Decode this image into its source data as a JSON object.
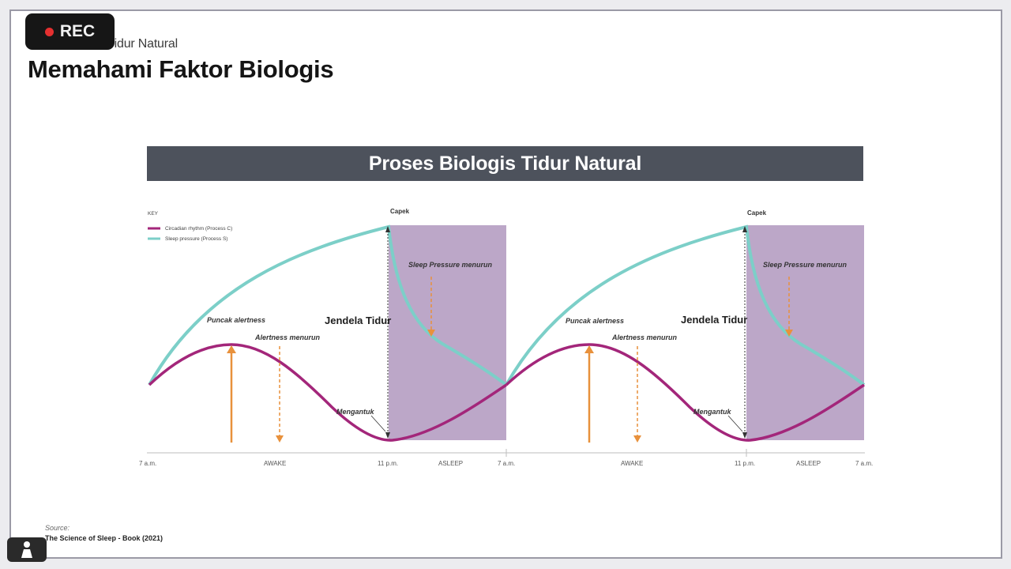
{
  "recording": {
    "label": "REC"
  },
  "slide": {
    "subtitle": "a Tidur Natural",
    "title": "Memahami Faktor Biologis",
    "banner": "Proses Biologis Tidur Natural",
    "source_label": "Source:",
    "source_text": "The Science of Sleep - Book (2021)"
  },
  "diagram": {
    "key_title": "KEY",
    "key_items": [
      {
        "label": "Circadian rhythm (Process C)",
        "color": "#a3267a"
      },
      {
        "label": "Sleep pressure (Process S)",
        "color": "#7ccfc8"
      }
    ],
    "annotations": {
      "tired": "Capek",
      "pressure_down": "Sleep Pressure menurun",
      "sleep_window": "Jendela Tidur",
      "alert_peak": "Puncak alertness",
      "alert_down": "Alertness menurun",
      "sleepy": "Mengantuk"
    },
    "ticks": {
      "start": "7 a.m.",
      "awake": "AWAKE",
      "night": "11 p.m.",
      "asleep": "ASLEEP",
      "end": "7 a.m."
    },
    "colors": {
      "circadian": "#a3267a",
      "pressure": "#7ccfc8",
      "sleep_zone": "#bca7c8",
      "arrow": "#e8913c"
    }
  }
}
